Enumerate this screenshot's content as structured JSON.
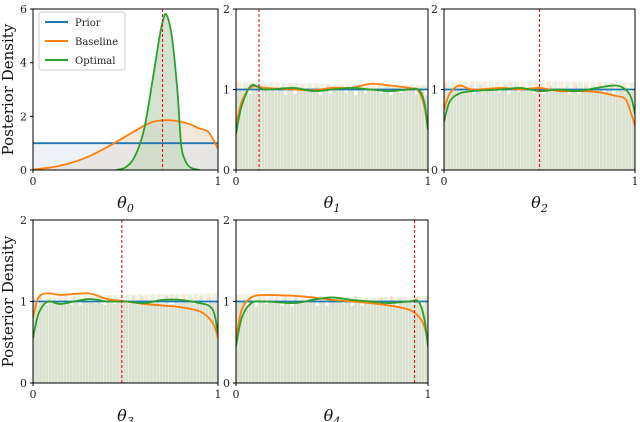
{
  "figure": {
    "ylabel": "Posterior Density"
  },
  "legend": {
    "items": [
      {
        "label": "Prior",
        "color": "#1f77b4"
      },
      {
        "label": "Baseline",
        "color": "#ff7f0e"
      },
      {
        "label": "Optimal",
        "color": "#2ca02c"
      }
    ]
  },
  "colors": {
    "prior": "#1f77b4",
    "baseline": "#ff7f0e",
    "optimal": "#2ca02c",
    "truth": "#e41a1c",
    "hist_fill": "#d4dcc6"
  },
  "chart_data": [
    {
      "type": "line",
      "xlabel": "θ0",
      "xlim": [
        0,
        1
      ],
      "ylim": [
        0,
        6
      ],
      "yticks": [
        0,
        2,
        4,
        6
      ],
      "xticks": [
        0,
        1
      ],
      "true_value": 0.7,
      "grid": false,
      "legend_position": "top-left",
      "series": [
        {
          "name": "Prior",
          "x": [
            0,
            1
          ],
          "y": [
            1,
            1
          ]
        },
        {
          "name": "Baseline",
          "x": [
            0,
            0.1,
            0.2,
            0.3,
            0.4,
            0.5,
            0.6,
            0.65,
            0.7,
            0.75,
            0.8,
            0.85,
            0.9,
            0.95,
            1.0
          ],
          "y": [
            0.02,
            0.1,
            0.25,
            0.5,
            0.85,
            1.25,
            1.65,
            1.8,
            1.85,
            1.85,
            1.8,
            1.7,
            1.55,
            1.4,
            0.8
          ]
        },
        {
          "name": "Optimal",
          "x": [
            0.45,
            0.5,
            0.55,
            0.6,
            0.65,
            0.68,
            0.7,
            0.72,
            0.75,
            0.78,
            0.8,
            0.82,
            0.85,
            0.9
          ],
          "y": [
            0.0,
            0.1,
            0.5,
            1.5,
            3.5,
            4.8,
            5.5,
            5.8,
            5.0,
            3.0,
            1.0,
            0.4,
            0.1,
            0.0
          ]
        }
      ]
    },
    {
      "type": "line",
      "xlabel": "θ1",
      "xlim": [
        0,
        1
      ],
      "ylim": [
        0,
        2
      ],
      "yticks": [
        0,
        1,
        2
      ],
      "xticks": [
        0,
        1
      ],
      "true_value": 0.12,
      "series": [
        {
          "name": "Prior",
          "x": [
            0,
            1
          ],
          "y": [
            1,
            1
          ]
        },
        {
          "name": "Baseline",
          "x": [
            0,
            0.03,
            0.08,
            0.15,
            0.3,
            0.4,
            0.5,
            0.6,
            0.7,
            0.8,
            0.9,
            0.95,
            0.98,
            1.0
          ],
          "y": [
            0.55,
            0.85,
            1.03,
            1.02,
            1.0,
            0.99,
            1.02,
            1.02,
            1.07,
            1.05,
            1.02,
            0.98,
            0.8,
            0.5
          ]
        },
        {
          "name": "Optimal",
          "x": [
            0,
            0.03,
            0.08,
            0.15,
            0.3,
            0.4,
            0.5,
            0.6,
            0.7,
            0.8,
            0.9,
            0.95,
            0.98,
            1.0
          ],
          "y": [
            0.45,
            0.8,
            1.05,
            1.0,
            1.02,
            0.98,
            1.0,
            1.02,
            1.0,
            0.98,
            1.0,
            1.0,
            0.85,
            0.5
          ]
        }
      ]
    },
    {
      "type": "line",
      "xlabel": "θ2",
      "xlim": [
        0,
        1
      ],
      "ylim": [
        0,
        2
      ],
      "yticks": [
        0,
        1,
        2
      ],
      "xticks": [
        0,
        1
      ],
      "true_value": 0.5,
      "series": [
        {
          "name": "Prior",
          "x": [
            0,
            1
          ],
          "y": [
            1,
            1
          ]
        },
        {
          "name": "Baseline",
          "x": [
            0,
            0.03,
            0.08,
            0.15,
            0.3,
            0.4,
            0.5,
            0.6,
            0.7,
            0.8,
            0.9,
            0.95,
            0.98,
            1.0
          ],
          "y": [
            0.75,
            0.95,
            1.05,
            1.0,
            1.02,
            1.0,
            1.02,
            0.98,
            0.98,
            0.97,
            0.92,
            0.88,
            0.7,
            0.55
          ]
        },
        {
          "name": "Optimal",
          "x": [
            0,
            0.03,
            0.08,
            0.15,
            0.3,
            0.4,
            0.5,
            0.6,
            0.7,
            0.8,
            0.9,
            0.95,
            0.98,
            1.0
          ],
          "y": [
            0.6,
            0.85,
            0.95,
            0.98,
            1.0,
            1.02,
            0.98,
            1.0,
            0.98,
            1.02,
            1.05,
            1.0,
            0.9,
            0.7
          ]
        }
      ]
    },
    {
      "type": "line",
      "xlabel": "θ3",
      "xlim": [
        0,
        1
      ],
      "ylim": [
        0,
        2
      ],
      "yticks": [
        0,
        1,
        2
      ],
      "xticks": [
        0,
        1
      ],
      "true_value": 0.48,
      "series": [
        {
          "name": "Prior",
          "x": [
            0,
            1
          ],
          "y": [
            1,
            1
          ]
        },
        {
          "name": "Baseline",
          "x": [
            0,
            0.03,
            0.08,
            0.15,
            0.3,
            0.4,
            0.5,
            0.6,
            0.7,
            0.8,
            0.9,
            0.95,
            0.98,
            1.0
          ],
          "y": [
            0.8,
            1.05,
            1.1,
            1.08,
            1.1,
            1.03,
            1.0,
            0.97,
            0.95,
            0.93,
            0.88,
            0.8,
            0.7,
            0.55
          ]
        },
        {
          "name": "Optimal",
          "x": [
            0,
            0.03,
            0.08,
            0.15,
            0.3,
            0.4,
            0.5,
            0.6,
            0.7,
            0.8,
            0.9,
            0.95,
            0.98,
            1.0
          ],
          "y": [
            0.55,
            0.85,
            1.0,
            0.97,
            1.03,
            1.0,
            1.0,
            0.98,
            1.02,
            1.02,
            0.98,
            0.95,
            0.85,
            0.6
          ]
        }
      ]
    },
    {
      "type": "line",
      "xlabel": "θ4",
      "xlim": [
        0,
        1
      ],
      "ylim": [
        0,
        2
      ],
      "yticks": [
        0,
        1,
        2
      ],
      "xticks": [
        0,
        1
      ],
      "true_value": 0.93,
      "series": [
        {
          "name": "Prior",
          "x": [
            0,
            1
          ],
          "y": [
            1,
            1
          ]
        },
        {
          "name": "Baseline",
          "x": [
            0,
            0.03,
            0.08,
            0.15,
            0.3,
            0.4,
            0.5,
            0.6,
            0.7,
            0.8,
            0.9,
            0.95,
            0.98,
            1.0
          ],
          "y": [
            0.55,
            0.9,
            1.05,
            1.08,
            1.07,
            1.05,
            1.02,
            1.0,
            0.98,
            0.95,
            0.9,
            0.82,
            0.7,
            0.5
          ]
        },
        {
          "name": "Optimal",
          "x": [
            0,
            0.03,
            0.08,
            0.15,
            0.3,
            0.4,
            0.5,
            0.6,
            0.7,
            0.8,
            0.9,
            0.95,
            0.98,
            1.0
          ],
          "y": [
            0.45,
            0.8,
            0.98,
            1.0,
            0.98,
            1.02,
            1.05,
            1.02,
            1.0,
            0.98,
            1.0,
            1.0,
            0.8,
            0.45
          ]
        }
      ]
    }
  ]
}
